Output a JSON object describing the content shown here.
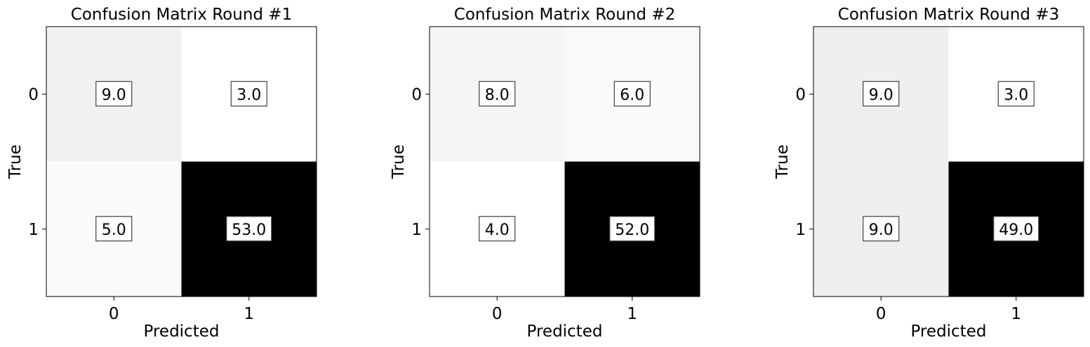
{
  "chart_data": [
    {
      "type": "heatmap",
      "title": "Confusion Matrix Round #1",
      "xlabel": "Predicted",
      "ylabel": "True",
      "x_categories": [
        "0",
        "1"
      ],
      "y_categories": [
        "0",
        "1"
      ],
      "values": [
        [
          9.0,
          3.0
        ],
        [
          5.0,
          53.0
        ]
      ],
      "labels": [
        [
          "9.0",
          "3.0"
        ],
        [
          "5.0",
          "53.0"
        ]
      ],
      "colormap": "greys"
    },
    {
      "type": "heatmap",
      "title": "Confusion Matrix Round #2",
      "xlabel": "Predicted",
      "ylabel": "True",
      "x_categories": [
        "0",
        "1"
      ],
      "y_categories": [
        "0",
        "1"
      ],
      "values": [
        [
          8.0,
          6.0
        ],
        [
          4.0,
          52.0
        ]
      ],
      "labels": [
        [
          "8.0",
          "6.0"
        ],
        [
          "4.0",
          "52.0"
        ]
      ],
      "colormap": "greys"
    },
    {
      "type": "heatmap",
      "title": "Confusion Matrix Round #3",
      "xlabel": "Predicted",
      "ylabel": "True",
      "x_categories": [
        "0",
        "1"
      ],
      "y_categories": [
        "0",
        "1"
      ],
      "values": [
        [
          9.0,
          3.0
        ],
        [
          9.0,
          49.0
        ]
      ],
      "labels": [
        [
          "9.0",
          "3.0"
        ],
        [
          "9.0",
          "49.0"
        ]
      ],
      "colormap": "greys"
    }
  ]
}
